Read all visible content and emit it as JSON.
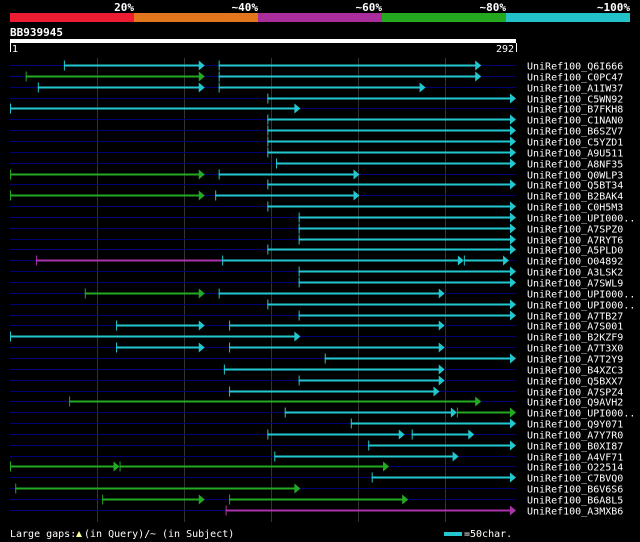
{
  "colors": {
    "background": "#000000",
    "text": "#ffffff",
    "grid": "#333333",
    "row_line": "#000077",
    "cyan": "#22c7cf",
    "green": "#22aa22",
    "purple": "#aa33aa",
    "legend_red": "#ee1c33",
    "legend_orange": "#e2761c",
    "legend_purple": "#aa2d9c",
    "legend_green": "#23a81f",
    "legend_cyan": "#23c2c8"
  },
  "legend": {
    "labels": [
      "20%",
      "~40%",
      "~60%",
      "~80%",
      "~100%"
    ],
    "colors": [
      "#ee1c33",
      "#e2761c",
      "#aa2d9c",
      "#23a81f",
      "#23c2c8"
    ]
  },
  "query": {
    "id": "BB939945",
    "start": "1",
    "end": "292",
    "length": 292
  },
  "footer": {
    "gaps_text": "Large gaps: ",
    "query_gap_text": "(in Query)/",
    "subject_gap_mark": "~",
    "subject_gap_text": " (in Subject)",
    "scale_text": "=50char."
  },
  "chart_data": {
    "type": "alignment-map",
    "title": "BB939945",
    "query_range": [
      1,
      292
    ],
    "identity_legend": [
      "20%",
      "~40%",
      "~60%",
      "~80%",
      "~100%"
    ],
    "hits": [
      {
        "name": "UniRef100_Q6I666",
        "segments": [
          {
            "s": 32,
            "e": 113,
            "c": "cyan",
            "arrow": true
          },
          {
            "s": 121,
            "e": 272,
            "c": "cyan",
            "arrow": true
          }
        ]
      },
      {
        "name": "UniRef100_C0PC47",
        "segments": [
          {
            "s": 10,
            "e": 113,
            "c": "green",
            "arrow": true
          },
          {
            "s": 121,
            "e": 272,
            "c": "cyan",
            "arrow": true
          }
        ]
      },
      {
        "name": "UniRef100_A1IW37",
        "segments": [
          {
            "s": 17,
            "e": 113,
            "c": "cyan",
            "arrow": true
          },
          {
            "s": 121,
            "e": 240,
            "c": "cyan",
            "arrow": true
          }
        ]
      },
      {
        "name": "UniRef100_C5WN92",
        "segments": [
          {
            "s": 149,
            "e": 292,
            "c": "cyan",
            "arrow": true
          }
        ]
      },
      {
        "name": "UniRef100_B7FKH8",
        "segments": [
          {
            "s": 1,
            "e": 168,
            "c": "cyan",
            "arrow": true
          }
        ]
      },
      {
        "name": "UniRef100_C1NAN0",
        "segments": [
          {
            "s": 149,
            "e": 292,
            "c": "cyan",
            "arrow": true
          }
        ]
      },
      {
        "name": "UniRef100_B6SZV7",
        "segments": [
          {
            "s": 149,
            "e": 292,
            "c": "cyan",
            "arrow": true
          }
        ]
      },
      {
        "name": "UniRef100_C5YZD1",
        "segments": [
          {
            "s": 149,
            "e": 292,
            "c": "cyan",
            "arrow": true
          }
        ]
      },
      {
        "name": "UniRef100_A9U511",
        "segments": [
          {
            "s": 149,
            "e": 292,
            "c": "cyan",
            "arrow": true
          }
        ]
      },
      {
        "name": "UniRef100_A8NF35",
        "segments": [
          {
            "s": 154,
            "e": 292,
            "c": "cyan",
            "arrow": true
          }
        ]
      },
      {
        "name": "UniRef100_Q0WLP3",
        "segments": [
          {
            "s": 1,
            "e": 113,
            "c": "green",
            "arrow": true
          },
          {
            "s": 121,
            "e": 202,
            "c": "cyan",
            "arrow": true
          }
        ]
      },
      {
        "name": "UniRef100_Q5BT34",
        "segments": [
          {
            "s": 149,
            "e": 292,
            "c": "cyan",
            "arrow": true
          }
        ]
      },
      {
        "name": "UniRef100_B2BAK4",
        "segments": [
          {
            "s": 1,
            "e": 113,
            "c": "green",
            "arrow": true
          },
          {
            "s": 119,
            "e": 202,
            "c": "cyan",
            "arrow": true
          }
        ]
      },
      {
        "name": "UniRef100_C0H5M3",
        "segments": [
          {
            "s": 149,
            "e": 292,
            "c": "cyan",
            "arrow": true
          }
        ]
      },
      {
        "name": "UniRef100_UPI000..",
        "segments": [
          {
            "s": 167,
            "e": 292,
            "c": "cyan",
            "arrow": true
          }
        ]
      },
      {
        "name": "UniRef100_A7SPZ0",
        "segments": [
          {
            "s": 167,
            "e": 292,
            "c": "cyan",
            "arrow": true
          }
        ]
      },
      {
        "name": "UniRef100_A7RYT6",
        "segments": [
          {
            "s": 167,
            "e": 292,
            "c": "cyan",
            "arrow": true
          }
        ]
      },
      {
        "name": "UniRef100_A5PLD0",
        "segments": [
          {
            "s": 149,
            "e": 292,
            "c": "cyan",
            "arrow": true
          }
        ]
      },
      {
        "name": "UniRef100_O04892",
        "segments": [
          {
            "s": 16,
            "e": 123,
            "c": "purple",
            "arrow": false
          },
          {
            "s": 123,
            "e": 262,
            "c": "cyan",
            "arrow": true
          },
          {
            "s": 262,
            "e": 288,
            "c": "cyan",
            "arrow": true
          }
        ]
      },
      {
        "name": "UniRef100_A3LSK2",
        "segments": [
          {
            "s": 167,
            "e": 292,
            "c": "cyan",
            "arrow": true
          }
        ]
      },
      {
        "name": "UniRef100_A7SWL9",
        "segments": [
          {
            "s": 167,
            "e": 292,
            "c": "cyan",
            "arrow": true
          }
        ]
      },
      {
        "name": "UniRef100_UPI000..",
        "segments": [
          {
            "s": 44,
            "e": 113,
            "c": "green",
            "arrow": true
          },
          {
            "s": 121,
            "e": 251,
            "c": "cyan",
            "arrow": true
          }
        ]
      },
      {
        "name": "UniRef100_UPI000..",
        "segments": [
          {
            "s": 149,
            "e": 292,
            "c": "cyan",
            "arrow": true
          }
        ]
      },
      {
        "name": "UniRef100_A7TB27",
        "segments": [
          {
            "s": 167,
            "e": 292,
            "c": "cyan",
            "arrow": true
          }
        ]
      },
      {
        "name": "UniRef100_A7S001",
        "segments": [
          {
            "s": 62,
            "e": 113,
            "c": "cyan",
            "arrow": true
          },
          {
            "s": 127,
            "e": 251,
            "c": "cyan",
            "arrow": true
          }
        ]
      },
      {
        "name": "UniRef100_B2KZF9",
        "segments": [
          {
            "s": 1,
            "e": 168,
            "c": "cyan",
            "arrow": true
          }
        ]
      },
      {
        "name": "UniRef100_A7T3X0",
        "segments": [
          {
            "s": 62,
            "e": 113,
            "c": "cyan",
            "arrow": true
          },
          {
            "s": 127,
            "e": 251,
            "c": "cyan",
            "arrow": true
          }
        ]
      },
      {
        "name": "UniRef100_A7T2Y9",
        "segments": [
          {
            "s": 182,
            "e": 292,
            "c": "cyan",
            "arrow": true
          }
        ]
      },
      {
        "name": "UniRef100_B4XZC3",
        "segments": [
          {
            "s": 124,
            "e": 251,
            "c": "cyan",
            "arrow": true
          }
        ]
      },
      {
        "name": "UniRef100_Q5BXX7",
        "segments": [
          {
            "s": 167,
            "e": 251,
            "c": "cyan",
            "arrow": true
          }
        ]
      },
      {
        "name": "UniRef100_A7SPZ4",
        "segments": [
          {
            "s": 127,
            "e": 248,
            "c": "cyan",
            "arrow": true
          }
        ]
      },
      {
        "name": "UniRef100_Q9AVH2",
        "segments": [
          {
            "s": 35,
            "e": 272,
            "c": "green",
            "arrow": true
          }
        ]
      },
      {
        "name": "UniRef100_UPI000..",
        "segments": [
          {
            "s": 159,
            "e": 258,
            "c": "cyan",
            "arrow": true
          },
          {
            "s": 258,
            "e": 292,
            "c": "green",
            "arrow": true
          }
        ]
      },
      {
        "name": "UniRef100_Q9Y071",
        "segments": [
          {
            "s": 197,
            "e": 292,
            "c": "cyan",
            "arrow": true
          }
        ]
      },
      {
        "name": "UniRef100_A7Y7R0",
        "segments": [
          {
            "s": 149,
            "e": 228,
            "c": "cyan",
            "arrow": true
          },
          {
            "s": 232,
            "e": 268,
            "c": "cyan",
            "arrow": true
          }
        ]
      },
      {
        "name": "UniRef100_B0XI87",
        "segments": [
          {
            "s": 207,
            "e": 292,
            "c": "cyan",
            "arrow": true
          }
        ]
      },
      {
        "name": "UniRef100_A4VF71",
        "segments": [
          {
            "s": 153,
            "e": 259,
            "c": "cyan",
            "arrow": true
          }
        ]
      },
      {
        "name": "UniRef100_O22514",
        "segments": [
          {
            "s": 1,
            "e": 64,
            "c": "green",
            "arrow": true
          },
          {
            "s": 64,
            "e": 219,
            "c": "green",
            "arrow": true
          }
        ]
      },
      {
        "name": "UniRef100_C7BVQ0",
        "segments": [
          {
            "s": 209,
            "e": 292,
            "c": "cyan",
            "arrow": true
          }
        ]
      },
      {
        "name": "UniRef100_B6V6S6",
        "segments": [
          {
            "s": 4,
            "e": 168,
            "c": "green",
            "arrow": true
          }
        ]
      },
      {
        "name": "UniRef100_B6A8L5",
        "segments": [
          {
            "s": 54,
            "e": 113,
            "c": "green",
            "arrow": true
          },
          {
            "s": 127,
            "e": 230,
            "c": "green",
            "arrow": true
          }
        ]
      },
      {
        "name": "UniRef100_A3MXB6",
        "segments": [
          {
            "s": 125,
            "e": 292,
            "c": "purple",
            "arrow": true
          }
        ]
      }
    ]
  }
}
